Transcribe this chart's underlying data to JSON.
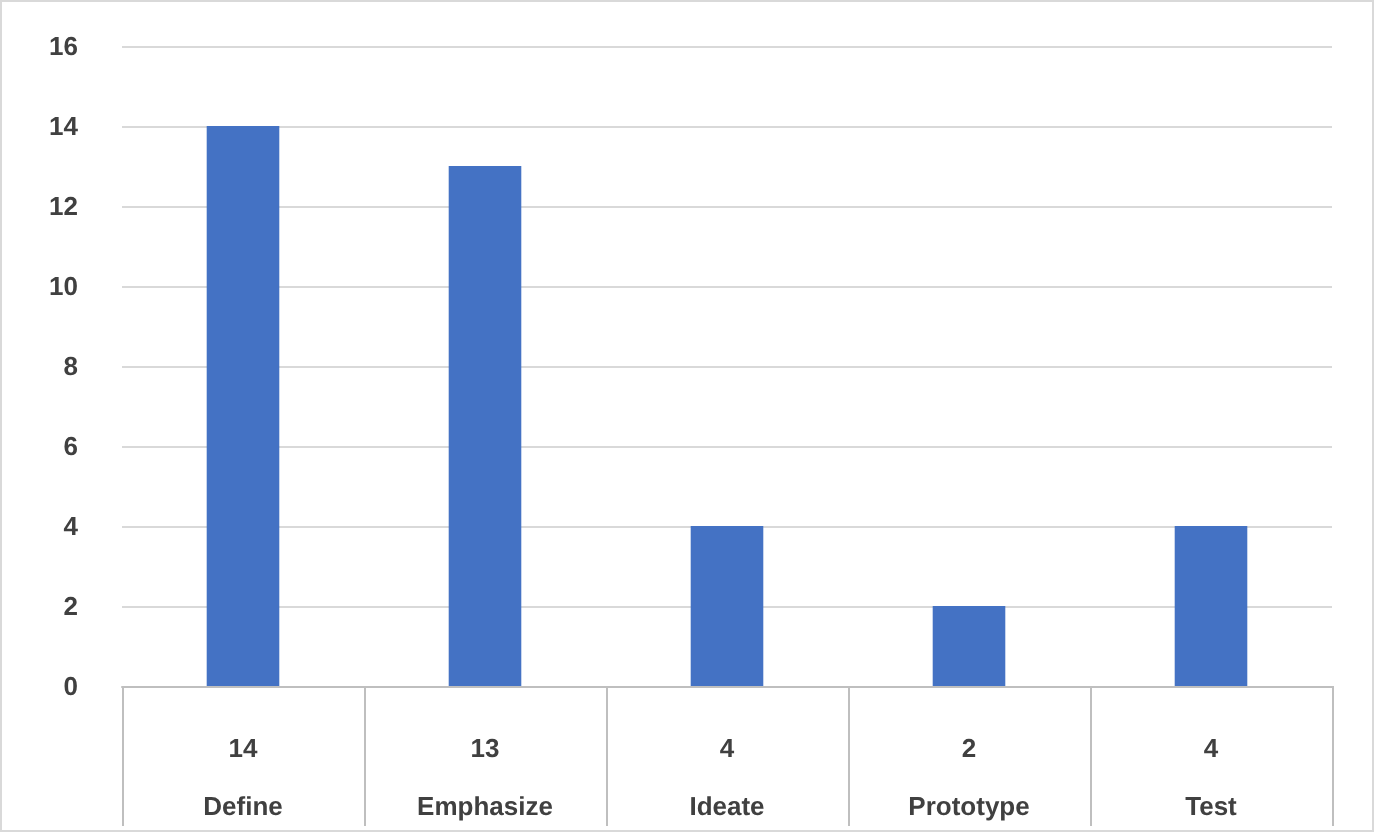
{
  "chart_data": {
    "type": "bar",
    "categories": [
      "Define",
      "Emphasize",
      "Ideate",
      "Prototype",
      "Test"
    ],
    "values": [
      14,
      13,
      4,
      2,
      4
    ],
    "color": "#4472c4",
    "ylim": [
      0,
      16
    ],
    "yticks": [
      0,
      2,
      4,
      6,
      8,
      10,
      12,
      14,
      16
    ],
    "grid": "y",
    "data_labels": true
  }
}
